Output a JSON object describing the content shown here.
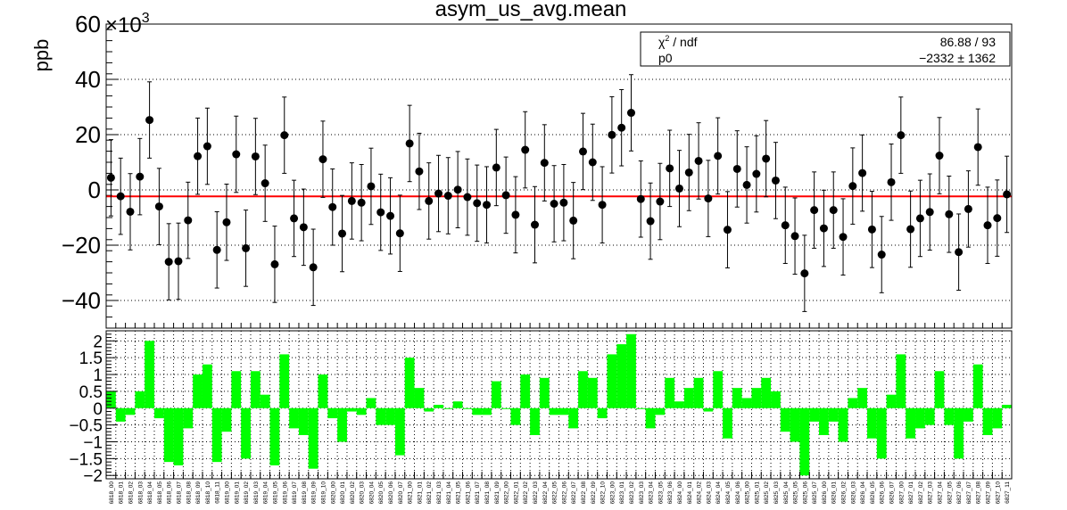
{
  "chart_data": [
    {
      "type": "scatter",
      "title": "asym_us_avg.mean",
      "ylabel": "ppb",
      "y_exponent_label": "×10",
      "y_exponent_power": "3",
      "ylim": [
        -50,
        60
      ],
      "ticks": [
        "60",
        "40",
        "20",
        "0",
        "−20",
        "−40"
      ],
      "grid": true,
      "fit": {
        "chi2_label": "χ",
        "chi2_sup": "2",
        "chi2_rest": " / ndf",
        "chi2_value": "86.88 / 93",
        "p0_label": "p0",
        "p0_value": "−2332 ±  1362",
        "p0": -2.332
      },
      "series": [
        {
          "y": [
            4.4,
            -2.3,
            -7.9,
            4.8,
            25.3,
            -6.0,
            -26.0,
            -25.8,
            -11.0,
            12.2,
            15.8,
            -21.7,
            -11.7,
            12.9,
            -21.1,
            12.1,
            2.4,
            -26.9,
            19.8,
            -10.3,
            -13.5,
            -28.0,
            11.1,
            -6.2,
            -15.8,
            -4.0,
            -4.6,
            1.3,
            -8.1,
            -9.4,
            -15.7,
            16.8,
            6.7,
            -4.0,
            -1.3,
            -2.1,
            0.1,
            -2.6,
            -4.8,
            -5.4,
            8.1,
            -1.9,
            -9.0,
            14.5,
            -12.6,
            9.8,
            -5.0,
            -4.6,
            -11.1,
            13.9,
            10.0,
            -5.4,
            19.9,
            22.5,
            27.9,
            -3.3,
            -11.3,
            -4.2,
            7.8,
            0.5,
            6.3,
            10.5,
            -3.1,
            12.3,
            -14.4,
            7.6,
            1.8,
            5.8,
            11.3,
            3.4,
            -12.8,
            -16.7,
            -30.2,
            -7.3,
            -13.9,
            -7.3,
            -17.0,
            1.4,
            6.1,
            -14.3,
            -23.4,
            2.8,
            19.8,
            -14.2,
            -10.3,
            -8.0,
            12.4,
            -8.8,
            -22.5,
            -6.9,
            15.5,
            -12.8,
            -10.2,
            -1.6
          ],
          "err": [
            13.8,
            13.8,
            13.8,
            13.8,
            13.8,
            13.8,
            13.8,
            13.8,
            13.8,
            13.8,
            13.8,
            13.8,
            13.8,
            13.8,
            13.8,
            13.8,
            13.8,
            13.8,
            13.8,
            13.8,
            13.8,
            13.8,
            13.8,
            13.8,
            13.8,
            13.8,
            13.8,
            13.8,
            13.8,
            13.8,
            13.8,
            13.8,
            13.8,
            13.8,
            13.8,
            13.8,
            13.8,
            13.8,
            13.8,
            13.8,
            13.8,
            13.8,
            13.8,
            13.8,
            13.8,
            13.8,
            13.8,
            13.8,
            13.8,
            13.8,
            13.8,
            13.8,
            13.8,
            13.8,
            13.8,
            13.8,
            13.8,
            13.8,
            13.8,
            13.8,
            13.8,
            13.8,
            13.8,
            13.8,
            13.8,
            13.8,
            13.8,
            13.8,
            13.8,
            13.8,
            13.8,
            13.8,
            13.8,
            13.8,
            13.8,
            13.8,
            13.8,
            13.8,
            13.8,
            13.8,
            13.8,
            13.8,
            13.8,
            13.8,
            13.8,
            13.8,
            13.8,
            13.8,
            13.8,
            13.8,
            13.8,
            13.8,
            13.8,
            13.8
          ]
        }
      ]
    },
    {
      "type": "bar",
      "ylim": [
        -2.1,
        2.3
      ],
      "ticks": [
        "2",
        "1.5",
        "1",
        "0.5",
        "0",
        "−0.5",
        "−1",
        "−1.5",
        "−2"
      ],
      "grid": true,
      "bar_color": "#00ff00",
      "categories": [
        "6818_00",
        "6818_01",
        "6818_02",
        "6818_03",
        "6818_04",
        "6818_05",
        "6818_06",
        "6818_07",
        "6818_08",
        "6818_09",
        "6818_10",
        "6818_11",
        "6819_00",
        "6819_01",
        "6819_02",
        "6819_03",
        "6819_04",
        "6819_05",
        "6819_06",
        "6819_07",
        "6819_08",
        "6819_09",
        "6819_10",
        "6820_00",
        "6820_01",
        "6820_02",
        "6820_03",
        "6820_04",
        "6820_05",
        "6820_06",
        "6820_07",
        "6821_00",
        "6821_01",
        "6821_02",
        "6821_03",
        "6821_04",
        "6821_05",
        "6821_06",
        "6821_07",
        "6821_08",
        "6821_09",
        "6822_00",
        "6822_01",
        "6822_02",
        "6822_03",
        "6822_04",
        "6822_05",
        "6822_06",
        "6822_07",
        "6822_08",
        "6822_09",
        "6822_10",
        "6823_00",
        "6823_01",
        "6823_02",
        "6823_03",
        "6823_04",
        "6823_05",
        "6823_06",
        "6824_00",
        "6824_01",
        "6824_02",
        "6824_03",
        "6824_04",
        "6824_05",
        "6824_06",
        "6825_00",
        "6825_01",
        "6825_02",
        "6825_03",
        "6825_04",
        "6825_05",
        "6825_06",
        "6825_07",
        "6826_00",
        "6826_01",
        "6826_02",
        "6826_03",
        "6826_04",
        "6826_05",
        "6826_06",
        "6826_07",
        "6827_00",
        "6827_01",
        "6827_02",
        "6827_03",
        "6827_04",
        "6827_05",
        "6827_06",
        "6827_07",
        "6827_08",
        "6827_09",
        "6827_10",
        "6827_11"
      ],
      "values": [
        0.5,
        -0.4,
        -0.2,
        0.5,
        2.0,
        -0.3,
        -1.6,
        -1.7,
        -0.6,
        1.0,
        1.3,
        -1.6,
        -0.7,
        1.1,
        -1.5,
        1.1,
        0.4,
        -1.7,
        1.6,
        -0.6,
        -0.8,
        -1.8,
        1.0,
        -0.3,
        -1.0,
        -0.1,
        -0.2,
        0.3,
        -0.5,
        -0.5,
        -1.4,
        1.5,
        0.6,
        -0.1,
        0.1,
        0.0,
        0.2,
        0.0,
        -0.2,
        -0.2,
        0.8,
        0.0,
        -0.5,
        1.0,
        -0.8,
        0.9,
        -0.2,
        -0.2,
        -0.6,
        1.1,
        0.9,
        -0.3,
        1.6,
        1.9,
        2.2,
        0.0,
        -0.6,
        -0.2,
        0.9,
        0.2,
        0.6,
        0.9,
        -0.1,
        1.1,
        -0.9,
        0.6,
        0.3,
        0.6,
        0.9,
        0.5,
        -0.7,
        -1.0,
        -2.0,
        -0.4,
        -0.8,
        -0.4,
        -1.0,
        0.3,
        0.6,
        -0.9,
        -1.5,
        0.4,
        1.6,
        -0.9,
        -0.6,
        -0.5,
        1.1,
        -0.5,
        -1.5,
        -0.4,
        1.3,
        -0.8,
        -0.6,
        0.1
      ]
    }
  ]
}
